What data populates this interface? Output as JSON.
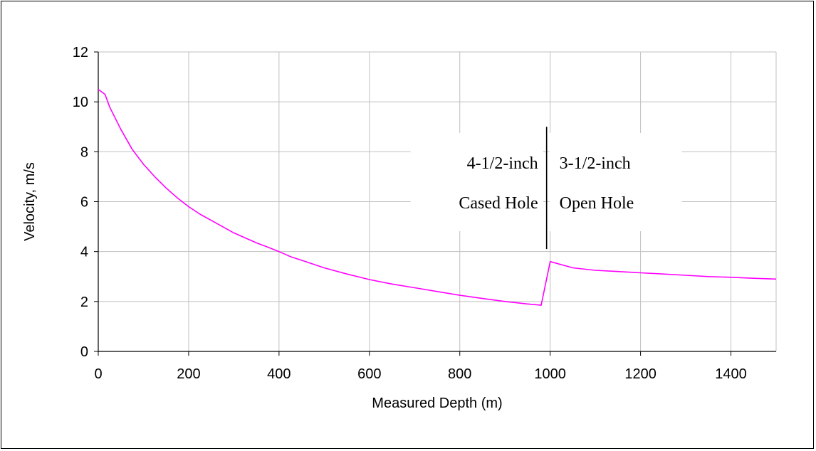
{
  "chart_data": {
    "type": "line",
    "title": "",
    "xlabel": "Measured Depth (m)",
    "ylabel": "Velocity, m/s",
    "xlim": [
      0,
      1500
    ],
    "ylim": [
      0,
      12
    ],
    "xticks": [
      0,
      200,
      400,
      600,
      800,
      1000,
      1200,
      1400
    ],
    "yticks": [
      0,
      2,
      4,
      6,
      8,
      10,
      12
    ],
    "grid": true,
    "legend": "none",
    "series": [
      {
        "color": "#ff00ff",
        "x": [
          0,
          15,
          25,
          50,
          75,
          100,
          125,
          150,
          175,
          200,
          225,
          250,
          275,
          300,
          325,
          350,
          375,
          400,
          425,
          450,
          500,
          550,
          600,
          650,
          700,
          750,
          800,
          850,
          900,
          950,
          980,
          1000,
          1050,
          1100,
          1150,
          1200,
          1250,
          1300,
          1350,
          1400,
          1450,
          1500
        ],
        "y": [
          10.5,
          10.3,
          9.8,
          8.9,
          8.1,
          7.5,
          7.0,
          6.55,
          6.15,
          5.8,
          5.5,
          5.25,
          5.0,
          4.75,
          4.55,
          4.35,
          4.18,
          4.0,
          3.8,
          3.65,
          3.35,
          3.1,
          2.88,
          2.7,
          2.55,
          2.4,
          2.25,
          2.12,
          2.0,
          1.9,
          1.85,
          3.6,
          3.35,
          3.25,
          3.2,
          3.15,
          3.1,
          3.05,
          3.0,
          2.97,
          2.93,
          2.9
        ]
      }
    ],
    "annotations": {
      "divider_x": 1000,
      "divider_y": [
        4.1,
        9.0
      ],
      "left_line1": "4-1/2-inch",
      "left_line2": "Cased Hole",
      "right_line1": "3-1/2-inch",
      "right_line2": "Open Hole"
    }
  }
}
